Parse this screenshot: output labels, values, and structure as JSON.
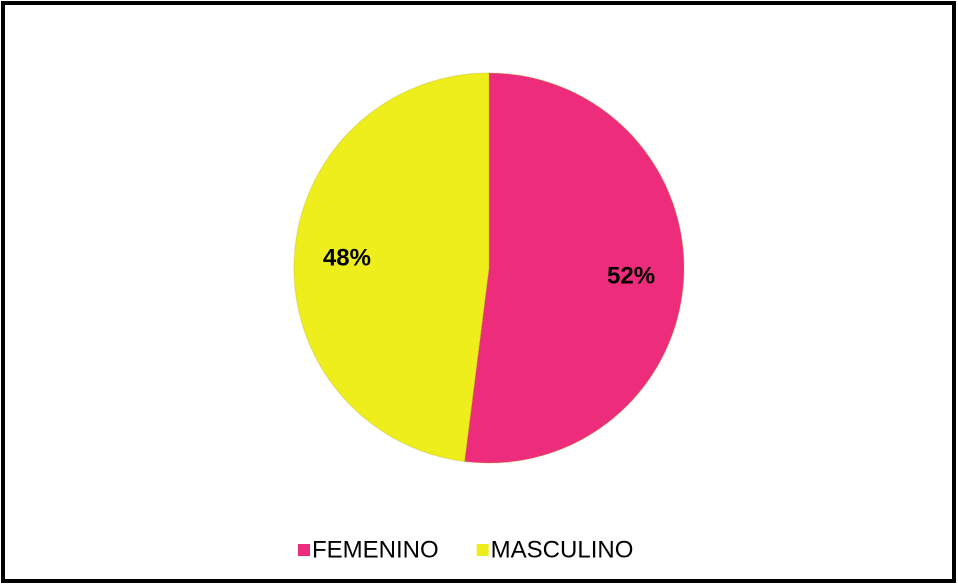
{
  "chart_data": {
    "type": "pie",
    "categories": [
      "FEMENINO",
      "MASCULINO"
    ],
    "values": [
      52,
      48
    ],
    "value_labels": [
      "52%",
      "48%"
    ],
    "colors": [
      "#ee2c7c",
      "#eeee1c"
    ],
    "legend": "bottom"
  }
}
